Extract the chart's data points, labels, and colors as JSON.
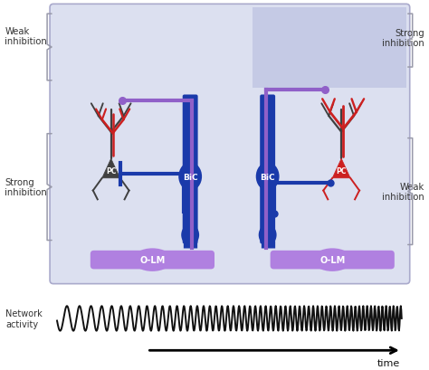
{
  "bg_color": "#ffffff",
  "panel_bg": "#dce0f0",
  "panel_top_right_bg": "#c5cae5",
  "dark_blue": "#1a3aaa",
  "purple": "#9060c8",
  "light_purple": "#b080e0",
  "red": "#cc2020",
  "dark_gray": "#404040",
  "medium_gray": "#606060",
  "wave_color": "#111111",
  "labels": {
    "weak_inhibition_left": "Weak\ninhibition",
    "strong_inhibition_left": "Strong\ninhibition",
    "strong_inhibition_right": "Strong\ninhibition",
    "weak_inhibition_right": "Weak\ninhibition",
    "network_activity": "Network\nactivity",
    "time": "time",
    "PC_left": "PC",
    "PC_right": "PC",
    "BiC_left": "BiC",
    "BiC_right": "BiC",
    "OLM_left": "O-LM",
    "OLM_right": "O-LM"
  }
}
